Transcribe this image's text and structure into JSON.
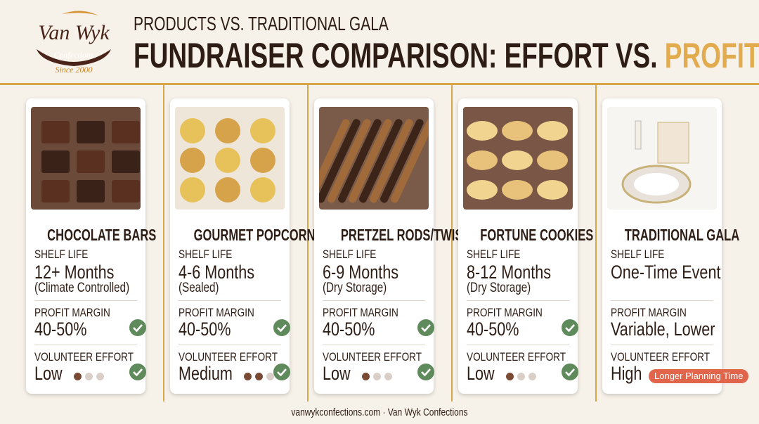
{
  "header": {
    "logo": {
      "brand": "Van Wyk",
      "sub": "Confections",
      "since": "Since 2000"
    },
    "subtitle": "PRODUCTS VS. TRADITIONAL GALA",
    "title": "FUNDRAISER COMPARISON: EFFORT VS.",
    "title_highlight": "PROFIT"
  },
  "cards": [
    {
      "name": "CHOCOLATE BARS",
      "shelf_life_label": "SHELF LIFE",
      "shelf_life": "12+ Months",
      "shelf_life_note": "(Climate Controlled)",
      "profit_label": "PROFIT MARGIN",
      "profit": "40-50%",
      "profit_check": true,
      "effort_label": "VOLUNTEER EFFORT",
      "effort": "Low",
      "effort_dots": 1,
      "effort_check": true
    },
    {
      "name": "GOURMET POPCORN",
      "shelf_life_label": "SHELF LIFE",
      "shelf_life": "4-6 Months",
      "shelf_life_note": "(Sealed)",
      "profit_label": "PROFIT MARGIN",
      "profit": "40-50%",
      "profit_check": true,
      "effort_label": "VOLUNTEER EFFORT",
      "effort": "Medium",
      "effort_dots": 2,
      "effort_check": true
    },
    {
      "name": "PRETZEL RODS/TWISTS",
      "shelf_life_label": "SHELF LIFE",
      "shelf_life": "6-9 Months",
      "shelf_life_note": "(Dry Storage)",
      "profit_label": "PROFIT MARGIN",
      "profit": "40-50%",
      "profit_check": true,
      "effort_label": "VOLUNTEER EFFORT",
      "effort": "Low",
      "effort_dots": 1,
      "effort_check": true
    },
    {
      "name": "FORTUNE COOKIES",
      "shelf_life_label": "SHELF LIFE",
      "shelf_life": "8-12 Months",
      "shelf_life_note": "(Dry Storage)",
      "profit_label": "PROFIT MARGIN",
      "profit": "40-50%",
      "profit_check": true,
      "effort_label": "VOLUNTEER EFFORT",
      "effort": "Low",
      "effort_dots": 1,
      "effort_check": true
    },
    {
      "name": "TRADITIONAL GALA",
      "shelf_life_label": "SHELF LIFE",
      "shelf_life": "One-Time Event",
      "profit_label": "PROFIT MARGIN",
      "profit": "Variable, Lower",
      "profit_check": false,
      "effort_label": "VOLUNTEER EFFORT",
      "effort": "High",
      "effort_check": false,
      "effort_badge": "Longer Planning Time"
    }
  ],
  "footer": "vanwykconfections.com · Van Wyk Confections"
}
